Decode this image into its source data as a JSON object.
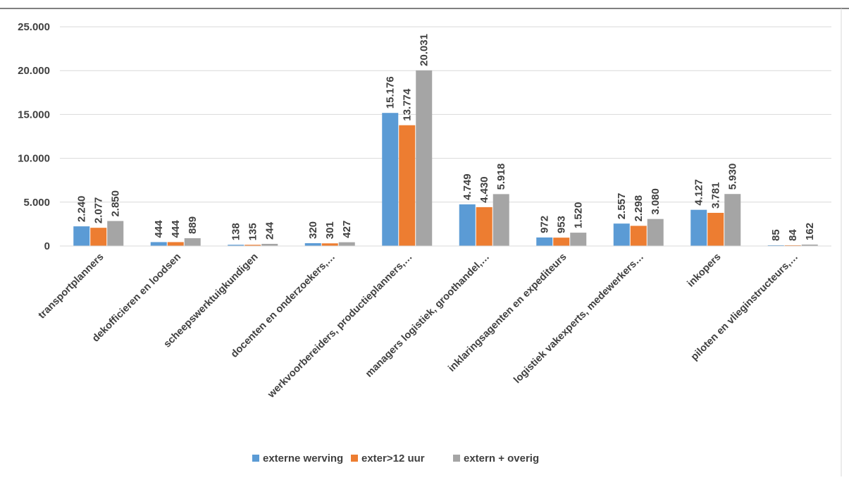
{
  "chart_data": {
    "type": "bar",
    "categories": [
      "transportplanners",
      "dekofficieren en loodsen",
      "scheepswerktuigkundigen",
      "docenten en onderzoekers,…",
      "werkvoorbereiders, productieplanners,…",
      "managers logistiek, groothandel,…",
      "inklaringsagenten en expediteurs",
      "logistiek vakexperts, medewerkers…",
      "inkopers",
      "piloten en vlieginstructeurs,…"
    ],
    "series": [
      {
        "name": "externe werving",
        "color": "#5B9BD5",
        "values": [
          2240,
          444,
          138,
          320,
          15176,
          4749,
          972,
          2557,
          4127,
          85
        ],
        "labels": [
          "2.240",
          "444",
          "138",
          "320",
          "15.176",
          "4.749",
          "972",
          "2.557",
          "4.127",
          "85"
        ]
      },
      {
        "name": "exter>12 uur",
        "color": "#ED7D31",
        "values": [
          2077,
          444,
          135,
          301,
          13774,
          4430,
          953,
          2298,
          3781,
          84
        ],
        "labels": [
          "2.077",
          "444",
          "135",
          "301",
          "13.774",
          "4.430",
          "953",
          "2.298",
          "3.781",
          "84"
        ]
      },
      {
        "name": "extern + overig",
        "color": "#A5A5A5",
        "values": [
          2850,
          889,
          244,
          427,
          20031,
          5918,
          1520,
          3080,
          5930,
          162
        ],
        "labels": [
          "2.850",
          "889",
          "244",
          "427",
          "20.031",
          "5.918",
          "1.520",
          "3.080",
          "5.930",
          "162"
        ]
      }
    ],
    "yticks": [
      0,
      5000,
      10000,
      15000,
      20000,
      25000
    ],
    "ytick_labels": [
      "0",
      "5.000",
      "10.000",
      "15.000",
      "20.000",
      "25.000"
    ],
    "ylim": [
      0,
      25000
    ],
    "grid": true,
    "legend": "bottom",
    "title": "",
    "xlabel": "",
    "ylabel": ""
  }
}
